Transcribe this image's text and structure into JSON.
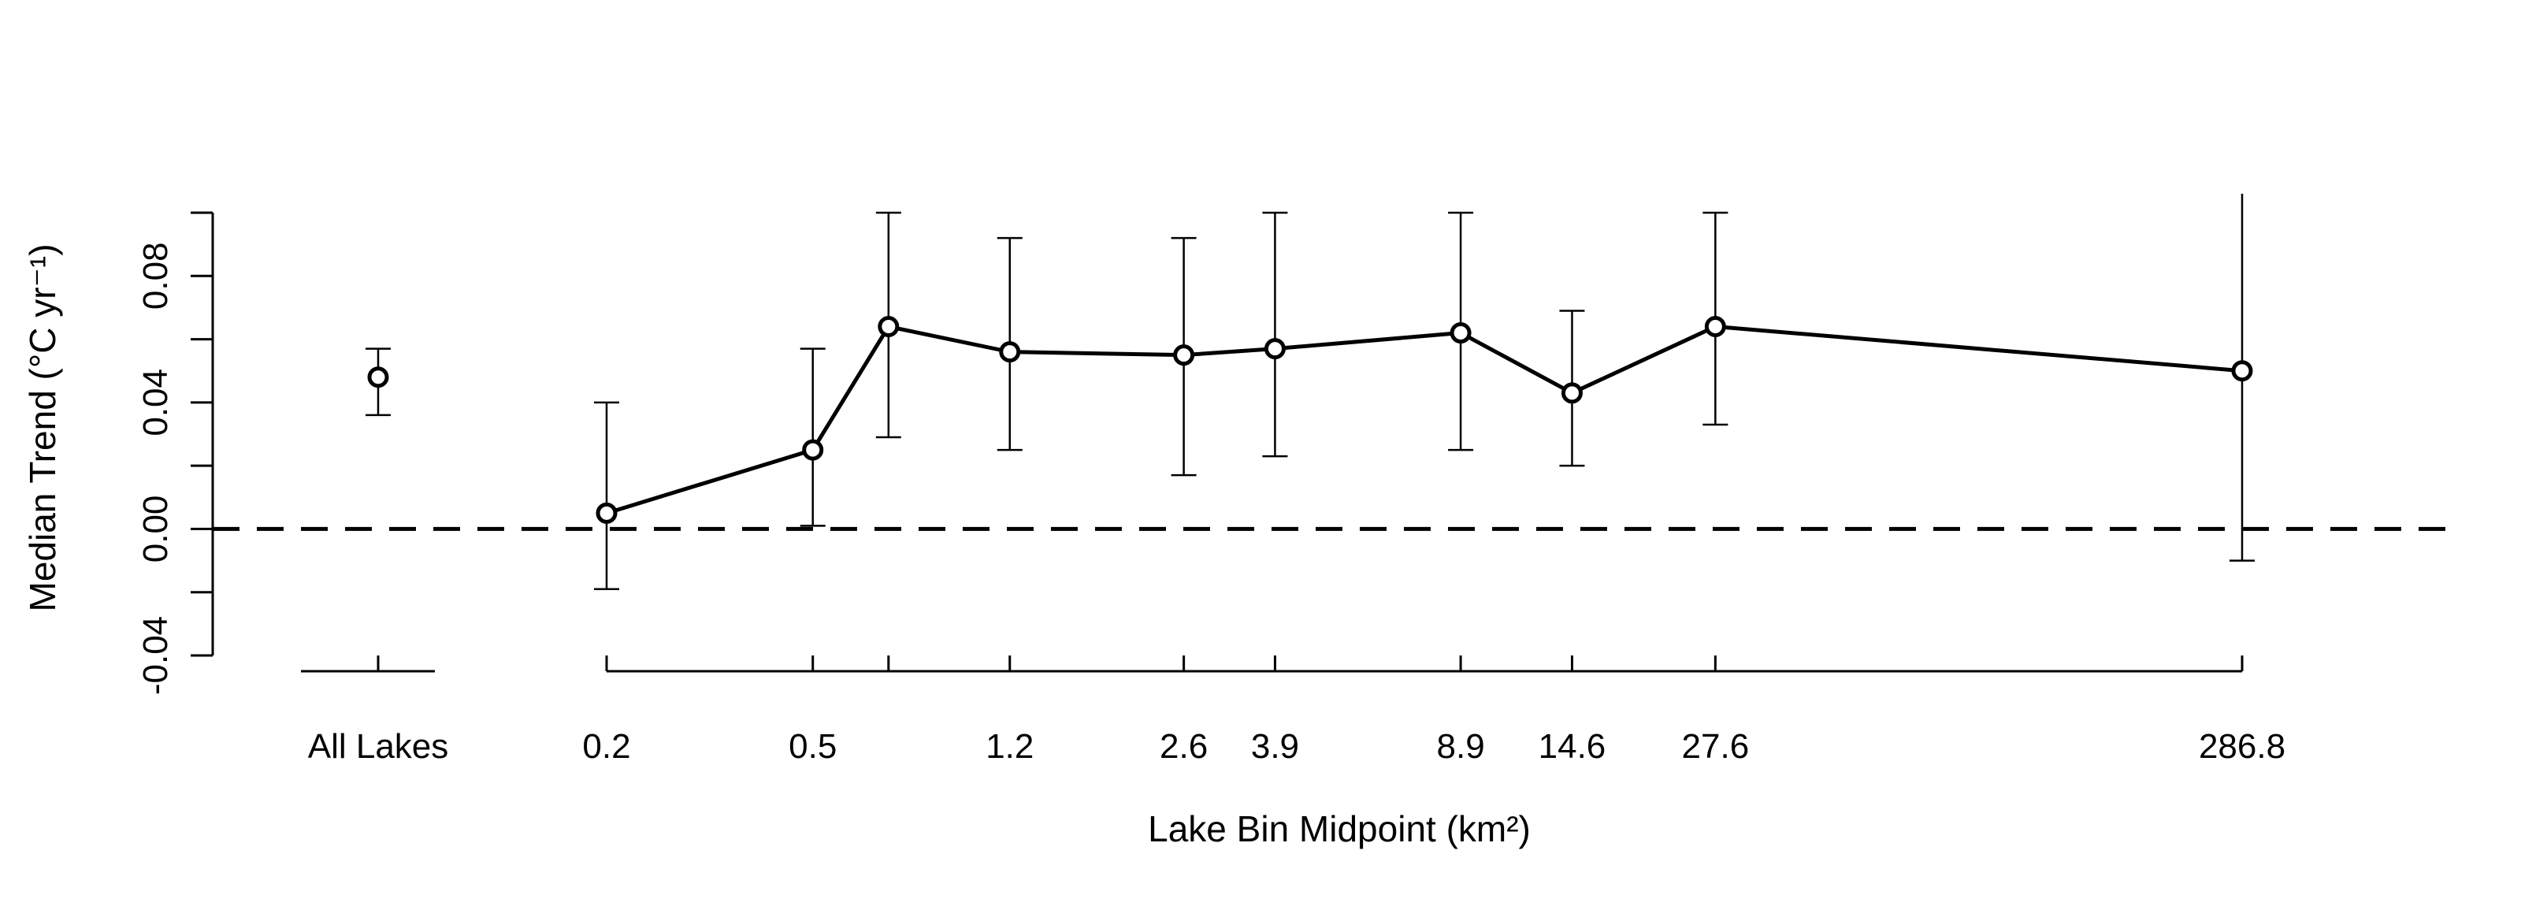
{
  "chart_data": {
    "type": "line",
    "xlabel": "Lake Bin Midpoint (km²)",
    "ylabel": "Median Trend (°C yr⁻¹)",
    "ylim": [
      -0.04,
      0.1
    ],
    "yticks": [
      "-0.04",
      "0.00",
      "0.04",
      "0.08"
    ],
    "reference_line": {
      "y": 0.0,
      "style": "dashed"
    },
    "grid": false,
    "legend": "none",
    "x_scale": "log",
    "summary_point": {
      "label": "All Lakes",
      "y": 0.048,
      "lower": 0.036,
      "upper": 0.057
    },
    "categories": [
      "0.2",
      "0.5",
      "",
      "1.2",
      "2.6",
      "3.9",
      "8.9",
      "14.6",
      "27.6",
      "286.8"
    ],
    "x": [
      0.2,
      0.5,
      0.7,
      1.2,
      2.6,
      3.9,
      8.9,
      14.6,
      27.6,
      286.8
    ],
    "values": [
      0.005,
      0.025,
      0.064,
      0.056,
      0.055,
      0.057,
      0.062,
      0.043,
      0.064,
      0.05
    ],
    "lower": [
      -0.019,
      0.001,
      0.029,
      0.025,
      0.017,
      0.023,
      0.025,
      0.02,
      0.033,
      -0.01
    ],
    "upper": [
      0.04,
      0.057,
      0.1,
      0.092,
      0.092,
      0.1,
      0.1,
      0.069,
      0.1,
      0.106
    ]
  }
}
